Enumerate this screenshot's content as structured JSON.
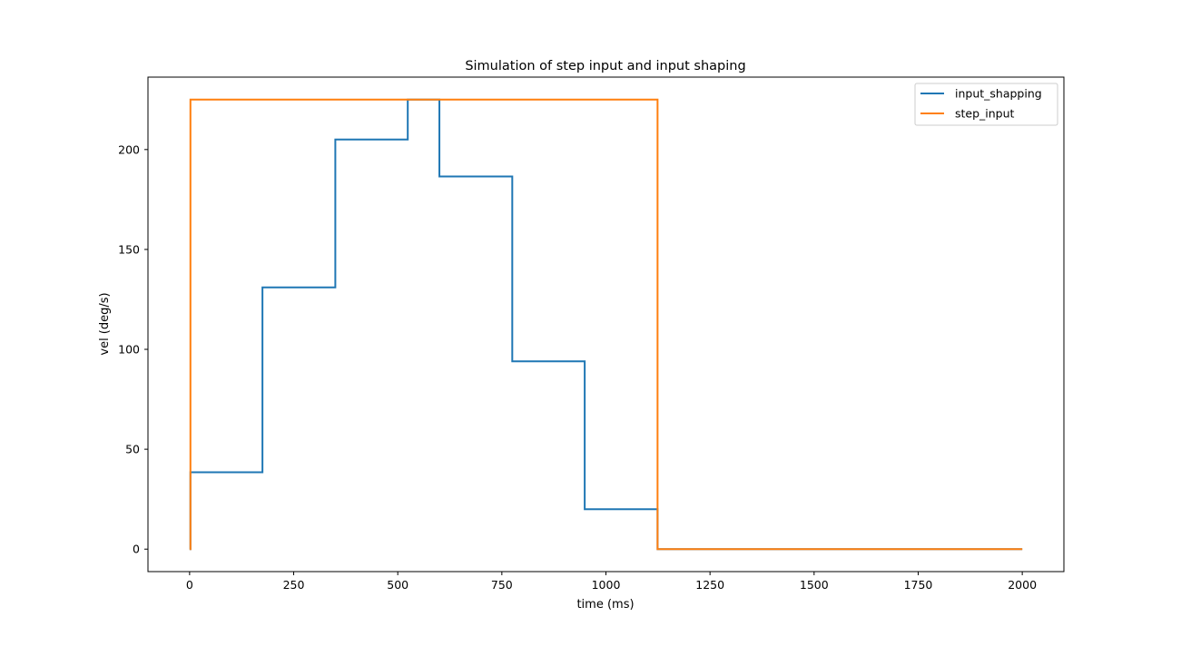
{
  "chart_data": {
    "type": "line",
    "title": "Simulation of step input and input shaping",
    "xlabel": "time (ms)",
    "ylabel": "vel (deg/s)",
    "xlim": [
      -100,
      2100
    ],
    "ylim": [
      -11.25,
      236.25
    ],
    "xticks": [
      0,
      250,
      500,
      750,
      1000,
      1250,
      1500,
      1750,
      2000
    ],
    "yticks": [
      0,
      50,
      100,
      150,
      200
    ],
    "grid": false,
    "legend": "top-right",
    "series": [
      {
        "name": "input_shapping",
        "color": "#1f77b4",
        "x": [
          0,
          2,
          2,
          175,
          175,
          350,
          350,
          524,
          524,
          600,
          600,
          775,
          775,
          949,
          949,
          1124,
          1124,
          2000
        ],
        "y": [
          0,
          0,
          38.5,
          38.5,
          131,
          131,
          205,
          205,
          225,
          225,
          186.5,
          186.5,
          94,
          94,
          20,
          20,
          0,
          0
        ]
      },
      {
        "name": "step_input",
        "color": "#ff7f0e",
        "x": [
          0,
          2,
          2,
          1124,
          1124,
          2000
        ],
        "y": [
          0,
          0,
          225,
          225,
          0,
          0
        ]
      }
    ]
  }
}
